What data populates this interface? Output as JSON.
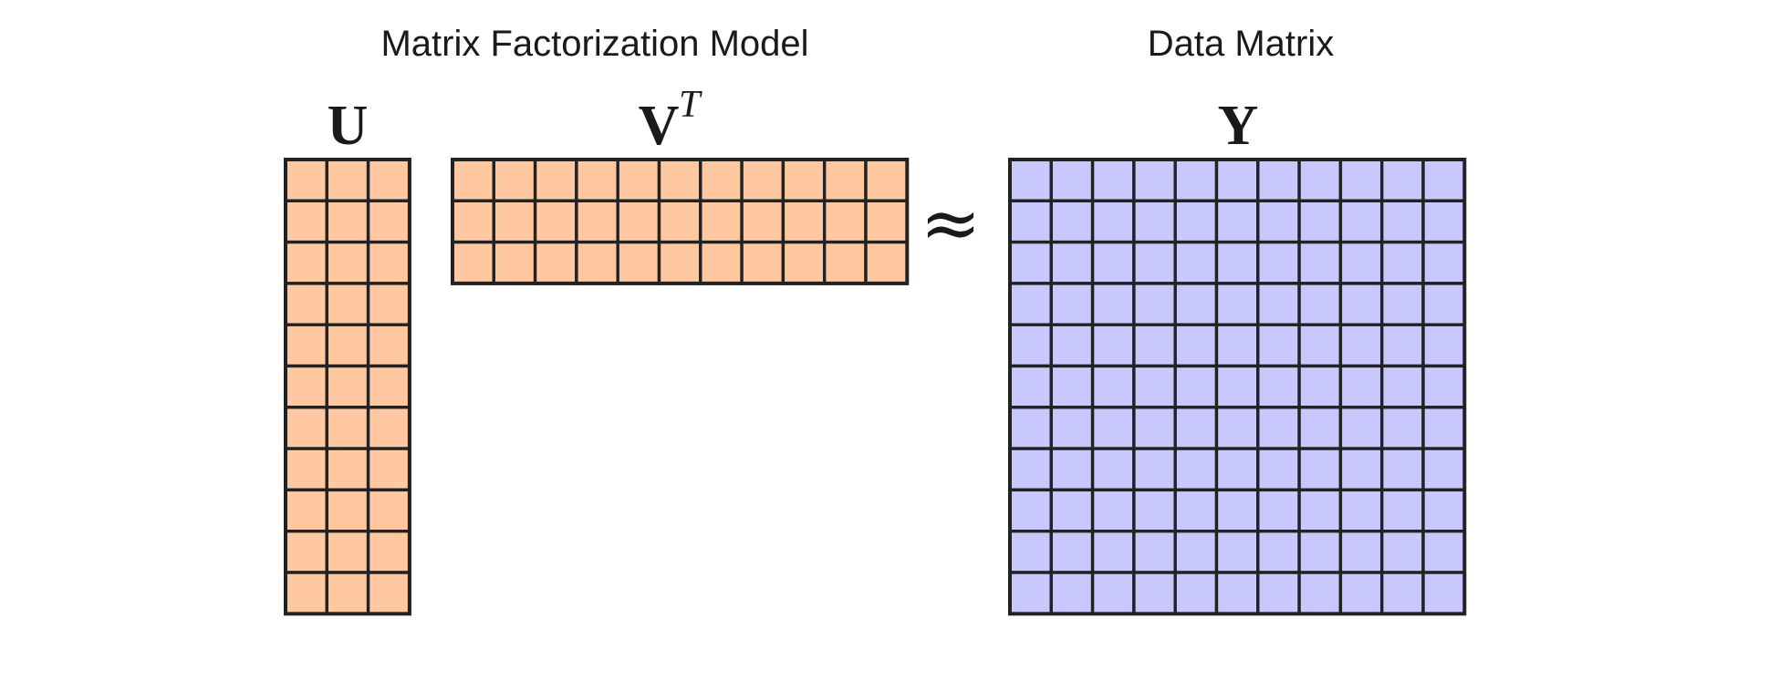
{
  "headings": {
    "model": "Matrix Factorization Model",
    "data": "Data Matrix"
  },
  "symbols": {
    "u": "U",
    "v": "V",
    "v_superscript": "T",
    "y": "Y",
    "relation": "≈"
  },
  "matrices": {
    "u": {
      "rows": 11,
      "cols": 3,
      "color": "#ffc8a0"
    },
    "vt": {
      "rows": 3,
      "cols": 11,
      "color": "#ffc8a0"
    },
    "y": {
      "rows": 11,
      "cols": 11,
      "color": "#c8c8ff"
    }
  },
  "colors": {
    "grid_line": "#222222",
    "text": "#1a1a1a"
  }
}
